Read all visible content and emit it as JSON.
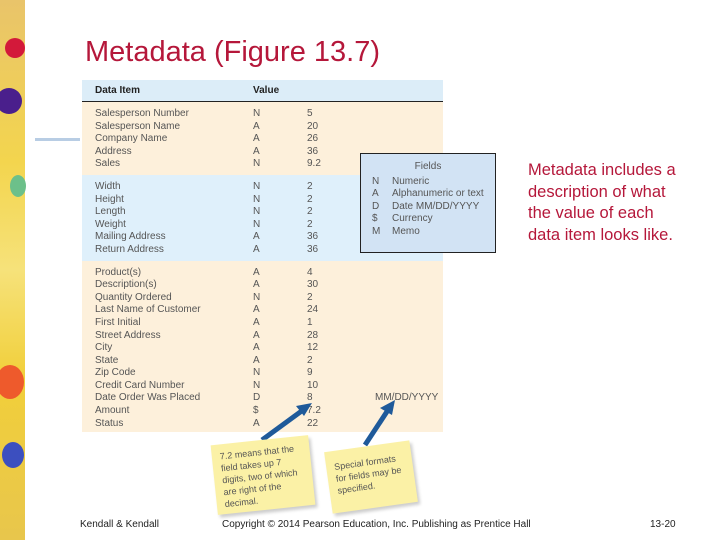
{
  "title": "Metadata (Figure 13.7)",
  "table": {
    "headers": [
      "Data Item",
      "Value"
    ],
    "sections": [
      [
        [
          "Salesperson Number",
          "N",
          "5"
        ],
        [
          "Salesperson Name",
          "A",
          "20"
        ],
        [
          "Company Name",
          "A",
          "26"
        ],
        [
          "Address",
          "A",
          "36"
        ],
        [
          "Sales",
          "N",
          "9.2"
        ]
      ],
      [
        [
          "Width",
          "N",
          "2"
        ],
        [
          "Height",
          "N",
          "2"
        ],
        [
          "Length",
          "N",
          "2"
        ],
        [
          "Weight",
          "N",
          "2"
        ],
        [
          "Mailing Address",
          "A",
          "36"
        ],
        [
          "Return Address",
          "A",
          "36"
        ]
      ],
      [
        [
          "Product(s)",
          "A",
          "4"
        ],
        [
          "Description(s)",
          "A",
          "30"
        ],
        [
          "Quantity Ordered",
          "N",
          "2"
        ],
        [
          "Last Name of Customer",
          "A",
          "24"
        ],
        [
          "First Initial",
          "A",
          "1"
        ],
        [
          "Street Address",
          "A",
          "28"
        ],
        [
          "City",
          "A",
          "12"
        ],
        [
          "State",
          "A",
          "2"
        ],
        [
          "Zip Code",
          "N",
          "9"
        ],
        [
          "Credit Card Number",
          "N",
          "10"
        ],
        [
          "Date Order Was Placed",
          "D",
          "8",
          "MM/DD/YYYY"
        ],
        [
          "Amount",
          "$",
          "7.2"
        ],
        [
          "Status",
          "A",
          "22"
        ]
      ]
    ]
  },
  "fields": {
    "title": "Fields",
    "items": [
      [
        "N",
        "Numeric"
      ],
      [
        "A",
        "Alphanumeric or text"
      ],
      [
        "D",
        "Date MM/DD/YYYY"
      ],
      [
        "$",
        "Currency"
      ],
      [
        "M",
        "Memo"
      ]
    ]
  },
  "note": "Metadata includes a description of what the value of each data item looks like.",
  "sticky1": "7.2 means that the field takes up 7 digits, two of which are right of the decimal.",
  "sticky2": "Special formats for fields may be specified.",
  "footer": {
    "left": "Kendall & Kendall",
    "center": "Copyright © 2014 Pearson Education, Inc. Publishing as Prentice Hall",
    "right": "13-20"
  }
}
